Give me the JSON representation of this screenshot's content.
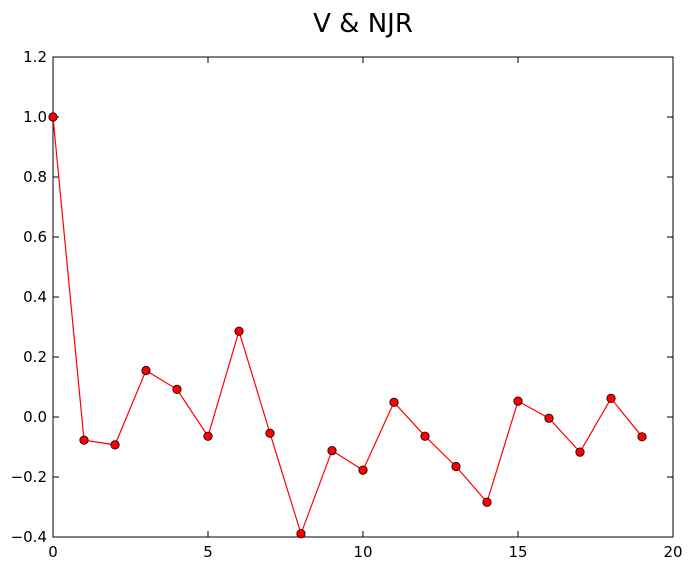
{
  "chart_data": {
    "type": "line",
    "title": "V & NJR",
    "xlabel": "",
    "ylabel": "",
    "xlim": [
      0,
      20
    ],
    "ylim": [
      -0.4,
      1.2
    ],
    "x_ticks": [
      0,
      5,
      10,
      15,
      20
    ],
    "y_ticks": [
      -0.4,
      -0.2,
      0.0,
      0.2,
      0.4,
      0.6,
      0.8,
      1.0,
      1.2
    ],
    "x_tick_labels": [
      "0",
      "5",
      "10",
      "15",
      "20"
    ],
    "y_tick_labels": [
      "−0.4",
      "−0.2",
      "0.0",
      "0.2",
      "0.4",
      "0.6",
      "0.8",
      "1.0",
      "1.2"
    ],
    "grid": false,
    "series": [
      {
        "color": "#ff0000",
        "marker": "circle",
        "x": [
          0,
          1,
          2,
          3,
          4,
          5,
          6,
          7,
          8,
          9,
          10,
          11,
          12,
          13,
          14,
          15,
          16,
          17,
          18,
          19
        ],
        "values": [
          1.0,
          -0.077,
          -0.093,
          0.155,
          0.092,
          -0.064,
          0.286,
          -0.054,
          -0.389,
          -0.112,
          -0.177,
          0.049,
          -0.064,
          -0.165,
          -0.284,
          0.053,
          -0.004,
          -0.117,
          0.062,
          -0.066
        ]
      }
    ]
  }
}
